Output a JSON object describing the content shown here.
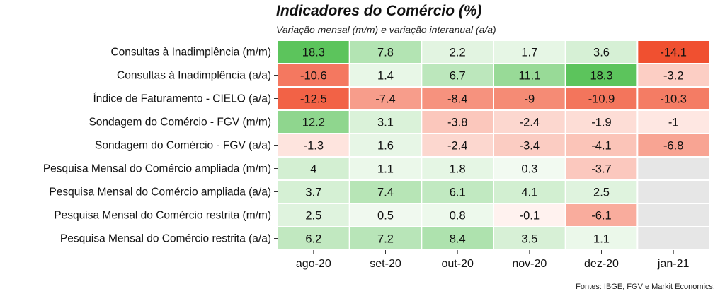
{
  "chart_data": {
    "type": "heatmap",
    "title": "Indicadores do Comércio (%)",
    "subtitle": "Variação mensal (m/m) e  variação interanual (a/a)",
    "source": "Fontes: IBGE, FGV e Markit Economics.",
    "columns": [
      "ago-20",
      "set-20",
      "out-20",
      "nov-20",
      "dez-20",
      "jan-21"
    ],
    "rows": [
      "Consultas à Inadimplência (m/m)",
      "Consultas à Inadimplência (a/a)",
      "Índice de Faturamento - CIELO (a/a)",
      "Sondagem do Comércio - FGV (m/m)",
      "Sondagem do Comércio - FGV (a/a)",
      "Pesquisa Mensal do Comércio ampliada (m/m)",
      "Pesquisa Mensal do Comércio ampliada (a/a)",
      "Pesquisa Mensal do Comércio restrita (m/m)",
      "Pesquisa Mensal do Comércio restrita (a/a)"
    ],
    "values": [
      [
        18.3,
        7.8,
        2.2,
        1.7,
        3.6,
        -14.1
      ],
      [
        -10.6,
        1.4,
        6.7,
        11.1,
        18.3,
        -3.2
      ],
      [
        -12.5,
        -7.4,
        -8.4,
        -9,
        -10.9,
        -10.3
      ],
      [
        12.2,
        3.1,
        -3.8,
        -2.4,
        -1.9,
        -1
      ],
      [
        -1.3,
        1.6,
        -2.4,
        -3.4,
        -4.1,
        -6.8
      ],
      [
        4,
        1.1,
        1.8,
        0.3,
        -3.7,
        null
      ],
      [
        3.7,
        7.4,
        6.1,
        4.1,
        2.5,
        null
      ],
      [
        2.5,
        0.5,
        0.8,
        -0.1,
        -6.1,
        null
      ],
      [
        6.2,
        7.2,
        8.4,
        3.5,
        1.1,
        null
      ]
    ],
    "colors": {
      "positive_max": "#5cc45c",
      "negative_max": "#f05030",
      "neutral": "#ffffff",
      "missing": "#e6e6e6"
    }
  }
}
